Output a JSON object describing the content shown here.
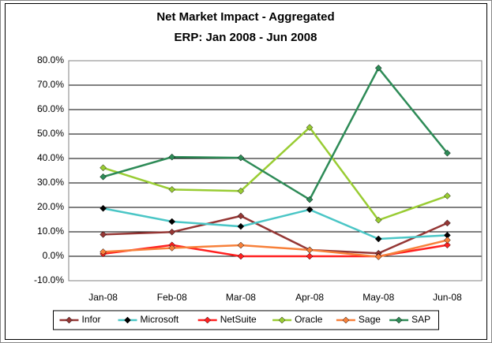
{
  "chart_data": {
    "type": "line",
    "title": "Net Market Impact - Aggregated",
    "subtitle": "ERP: Jan 2008 - Jun 2008",
    "categories": [
      "Jan-08",
      "Feb-08",
      "Mar-08",
      "Apr-08",
      "May-08",
      "Jun-08"
    ],
    "series": [
      {
        "name": "Infor",
        "color": "#953735",
        "marker_color": "#953735",
        "values": [
          8.9,
          9.9,
          16.5,
          2.6,
          1.2,
          13.6
        ]
      },
      {
        "name": "Microsoft",
        "color": "#4BC6C6",
        "marker_color": "#000000",
        "values": [
          19.6,
          14.2,
          12.2,
          19.1,
          7.1,
          8.6
        ]
      },
      {
        "name": "NetSuite",
        "color": "#FF2020",
        "marker_color": "#FF2020",
        "values": [
          1.0,
          4.6,
          0.0,
          0.0,
          0.0,
          4.6
        ]
      },
      {
        "name": "Oracle",
        "color": "#99CC33",
        "marker_color": "#99CC33",
        "values": [
          36.2,
          27.3,
          26.7,
          52.7,
          14.8,
          24.7
        ]
      },
      {
        "name": "Sage",
        "color": "#F7803A",
        "marker_color": "#F7803A",
        "values": [
          1.8,
          3.4,
          4.5,
          2.6,
          -0.2,
          6.6
        ]
      },
      {
        "name": "SAP",
        "color": "#2E8B57",
        "marker_color": "#2E8B57",
        "values": [
          32.5,
          40.6,
          40.3,
          23.2,
          77.0,
          42.2
        ]
      }
    ],
    "ylim": [
      -10,
      80
    ],
    "yticks": [
      {
        "value": -10,
        "label": "-10.0%"
      },
      {
        "value": 0,
        "label": "0.0%"
      },
      {
        "value": 10,
        "label": "10.0%"
      },
      {
        "value": 20,
        "label": "20.0%"
      },
      {
        "value": 30,
        "label": "30.0%"
      },
      {
        "value": 40,
        "label": "40.0%"
      },
      {
        "value": 50,
        "label": "50.0%"
      },
      {
        "value": 60,
        "label": "60.0%"
      },
      {
        "value": 70,
        "label": "70.0%"
      },
      {
        "value": 80,
        "label": "80.0%"
      }
    ],
    "grid": true,
    "legend": "bottom"
  }
}
